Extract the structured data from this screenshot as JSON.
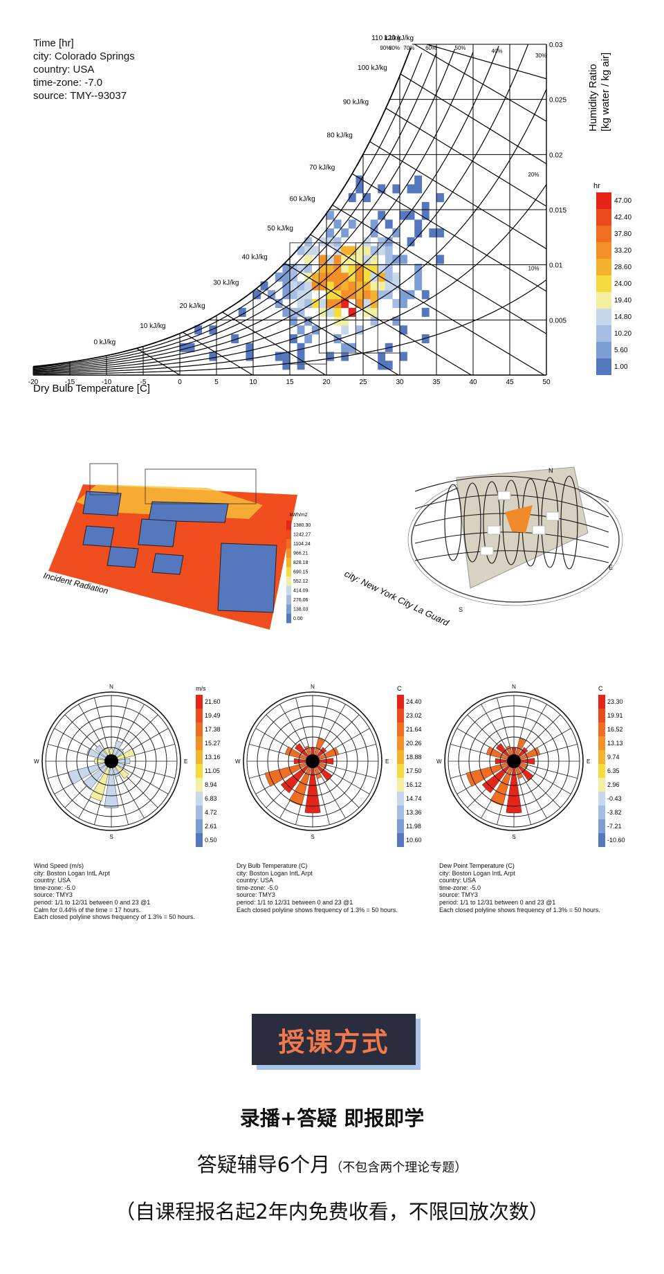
{
  "psychrometric": {
    "meta": [
      "Time [hr]",
      "city: Colorado Springs",
      "country: USA",
      "time-zone: -7.0",
      "source: TMY--93037"
    ],
    "x_axis_title": "Dry Bulb Temperature [C]",
    "y_axis_title_1": "Humidity Ratio",
    "y_axis_title_2": "[kg water / kg air]",
    "x_ticks": [
      "-20",
      "-15",
      "-10",
      "-5",
      "0",
      "5",
      "10",
      "15",
      "20",
      "25",
      "30",
      "35",
      "40",
      "45",
      "50"
    ],
    "y_ticks": [
      "0.005",
      "0.01",
      "0.015",
      "0.02",
      "0.025",
      "0.03"
    ],
    "enthalpy_labels": [
      "0 kJ/kg",
      "10 kJ/kg",
      "20 kJ/kg",
      "30 kJ/kg",
      "40 kJ/kg",
      "50 kJ/kg",
      "60 kJ/kg",
      "70 kJ/kg",
      "80 kJ/kg",
      "90 kJ/kg",
      "100 kJ/kg",
      "110 kJ/kg",
      "120 kJ/kg"
    ],
    "rh_labels": [
      "90%",
      "80%",
      "70%",
      "60%",
      "50%",
      "40%",
      "30%",
      "20%",
      "10%"
    ],
    "legend_unit": "hr",
    "legend_values": [
      "47.00",
      "42.40",
      "37.80",
      "33.20",
      "28.60",
      "24.00",
      "19.40",
      "14.80",
      "10.20",
      "5.60",
      "1.00"
    ],
    "legend_colors": [
      "#e5251a",
      "#eb4a1c",
      "#f06e22",
      "#f39027",
      "#f5b22f",
      "#f4dc3e",
      "#f2f0a0",
      "#c8d8ec",
      "#a6bde3",
      "#7d9dd5",
      "#5577bd"
    ]
  },
  "radiation": {
    "caption": "Incident Radiation",
    "legend_unit": "kWh/m2",
    "legend_values": [
      "1380.30",
      "1242.27",
      "1104.24",
      "966.21",
      "828.18",
      "690.15",
      "552.12",
      "414.09",
      "276.06",
      "138.03",
      "0.00"
    ]
  },
  "sky": {
    "caption": "city: New York City La Guard",
    "directions": [
      "N",
      "E",
      "S"
    ]
  },
  "roses": [
    {
      "unit": "m/s",
      "legend_values": [
        "21.60",
        "19.49",
        "17.38",
        "15.27",
        "13.16",
        "11.05",
        "8.94",
        "6.83",
        "4.72",
        "2.61",
        "0.50"
      ],
      "meta": [
        "Wind Speed (m/s)",
        "city: Boston Logan IntL Arpt",
        "country: USA",
        "time-zone: -5.0",
        "source: TMY3",
        "period: 1/1 to 12/31 between 0 and 23 @1",
        "Calm for 0.44% of the time = 17 hours.",
        "Each closed polyline shows frequency of 1.3% = 50 hours."
      ]
    },
    {
      "unit": "C",
      "legend_values": [
        "24.40",
        "23.02",
        "21.64",
        "20.26",
        "18.88",
        "17.50",
        "16.12",
        "14.74",
        "13.36",
        "11.98",
        "10.60"
      ],
      "meta": [
        "Dry Bulb Temperature (C)",
        "city: Boston Logan IntL Arpt",
        "country: USA",
        "time-zone: -5.0",
        "source: TMY3",
        "period: 1/1 to 12/31 between 0 and 23 @1",
        "Each closed polyline shows frequency of 1.3% = 50 hours."
      ]
    },
    {
      "unit": "C",
      "legend_values": [
        "23.30",
        "19.91",
        "16.52",
        "13.13",
        "9.74",
        "6.35",
        "2.96",
        "-0.43",
        "-3.82",
        "-7.21",
        "-10.60"
      ],
      "meta": [
        "Dew Point Temperature (C)",
        "city: Boston Logan IntL Arpt",
        "country: USA",
        "time-zone: -5.0",
        "source: TMY3",
        "period: 1/1 to 12/31 between 0 and 23 @1",
        "Each closed polyline shows frequency of 1.3% = 50 hours."
      ]
    }
  ],
  "rose_directions": [
    "N",
    "E",
    "S",
    "W"
  ],
  "course": {
    "badge": "授课方式",
    "line1": "录播+答疑 即报即学",
    "line2_main": "答疑辅导6个月",
    "line2_note": "（不包含两个理论专题）",
    "line3": "（自课程报名起2年内免费收看，不限回放次数）"
  },
  "colors": {
    "badge_bg": "#2a2d3e",
    "badge_text": "#f0784a",
    "badge_shadow": "#a9c4e8",
    "legend_ramp": [
      "#e5251a",
      "#eb4a1c",
      "#f06e22",
      "#f39027",
      "#f5b22f",
      "#f4dc3e",
      "#f2f0a0",
      "#c8d8ec",
      "#a6bde3",
      "#7d9dd5",
      "#5577bd"
    ]
  }
}
